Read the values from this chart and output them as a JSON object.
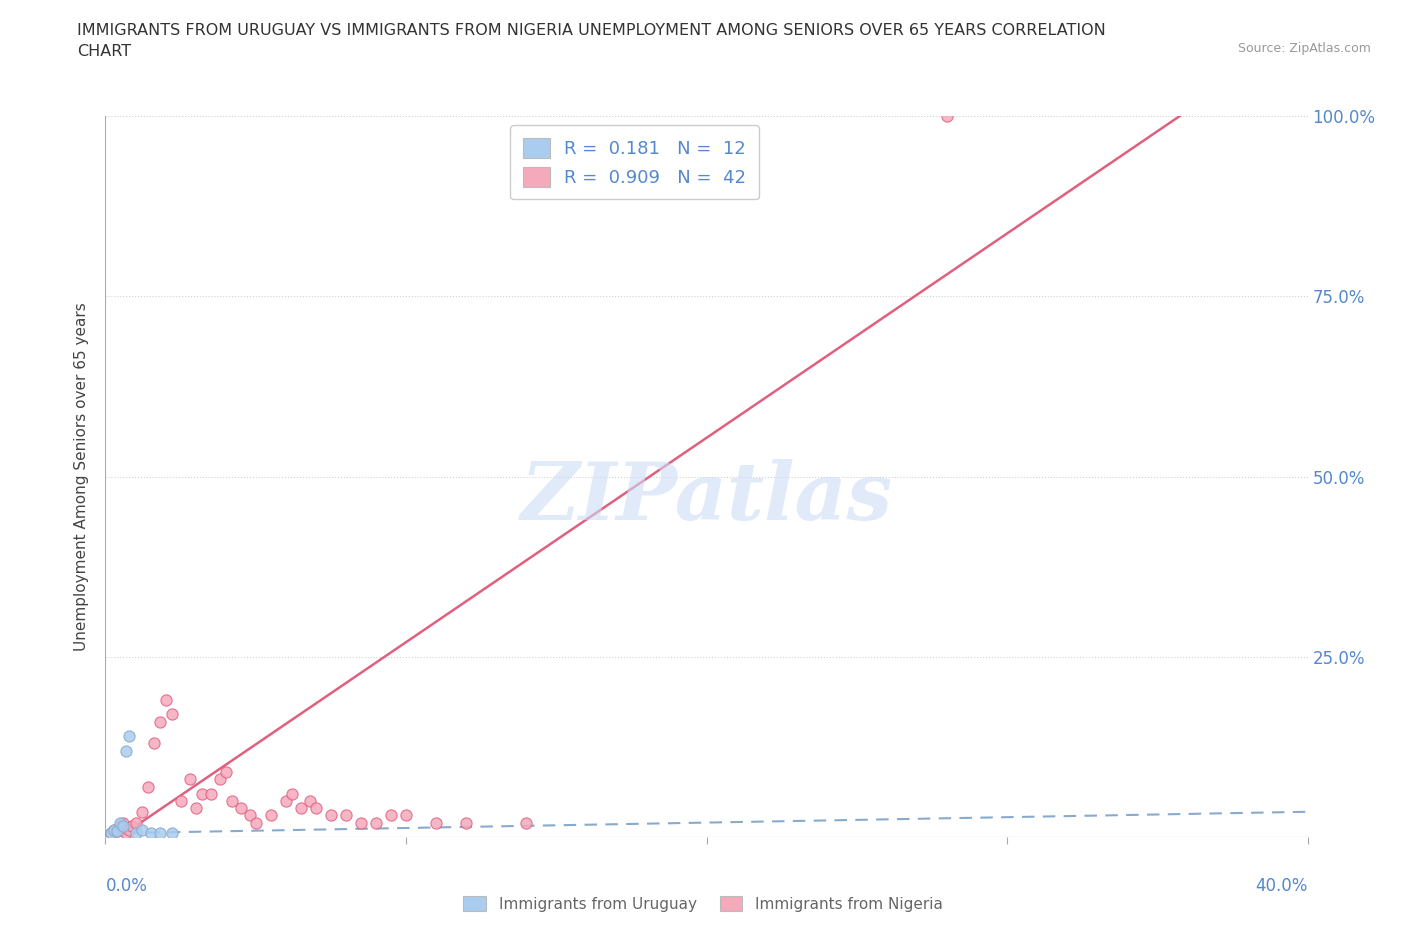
{
  "title": "IMMIGRANTS FROM URUGUAY VS IMMIGRANTS FROM NIGERIA UNEMPLOYMENT AMONG SENIORS OVER 65 YEARS CORRELATION\nCHART",
  "source": "Source: ZipAtlas.com",
  "ylabel": "Unemployment Among Seniors over 65 years",
  "xlim": [
    0.0,
    0.4
  ],
  "ylim": [
    0.0,
    1.0
  ],
  "yticks": [
    0.0,
    0.25,
    0.5,
    0.75,
    1.0
  ],
  "ytick_labels": [
    "",
    "25.0%",
    "50.0%",
    "75.0%",
    "100.0%"
  ],
  "xtick_positions": [
    0.0,
    0.1,
    0.2,
    0.3,
    0.4
  ],
  "legend_r_uruguay": "0.181",
  "legend_n_uruguay": "12",
  "legend_r_nigeria": "0.909",
  "legend_n_nigeria": "42",
  "uruguay_color": "#aaccee",
  "nigeria_color": "#f5aabc",
  "trend_uruguay_color": "#88aacc",
  "trend_nigeria_color": "#e06080",
  "watermark": "ZIPatlas",
  "watermark_color": "#ccddf5",
  "background_color": "#ffffff",
  "uruguay_scatter": {
    "x": [
      0.002,
      0.003,
      0.004,
      0.005,
      0.006,
      0.007,
      0.008,
      0.01,
      0.012,
      0.015,
      0.018,
      0.022
    ],
    "y": [
      0.005,
      0.01,
      0.008,
      0.02,
      0.015,
      0.12,
      0.14,
      0.005,
      0.01,
      0.005,
      0.005,
      0.005
    ]
  },
  "nigeria_scatter": {
    "x": [
      0.002,
      0.003,
      0.004,
      0.005,
      0.006,
      0.007,
      0.008,
      0.009,
      0.01,
      0.012,
      0.014,
      0.016,
      0.018,
      0.02,
      0.022,
      0.025,
      0.028,
      0.03,
      0.032,
      0.035,
      0.038,
      0.04,
      0.042,
      0.045,
      0.048,
      0.05,
      0.055,
      0.06,
      0.062,
      0.065,
      0.068,
      0.07,
      0.075,
      0.08,
      0.085,
      0.09,
      0.095,
      0.1,
      0.11,
      0.12,
      0.14,
      0.28
    ],
    "y": [
      0.005,
      0.01,
      0.008,
      0.015,
      0.02,
      0.005,
      0.01,
      0.015,
      0.02,
      0.035,
      0.07,
      0.13,
      0.16,
      0.19,
      0.17,
      0.05,
      0.08,
      0.04,
      0.06,
      0.06,
      0.08,
      0.09,
      0.05,
      0.04,
      0.03,
      0.02,
      0.03,
      0.05,
      0.06,
      0.04,
      0.05,
      0.04,
      0.03,
      0.03,
      0.02,
      0.02,
      0.03,
      0.03,
      0.02,
      0.02,
      0.02,
      1.0
    ]
  },
  "uruguay_trend": {
    "x": [
      0.0,
      0.4
    ],
    "y": [
      0.005,
      0.035
    ]
  },
  "nigeria_trend": {
    "x": [
      -0.02,
      0.375
    ],
    "y": [
      -0.07,
      1.05
    ]
  }
}
